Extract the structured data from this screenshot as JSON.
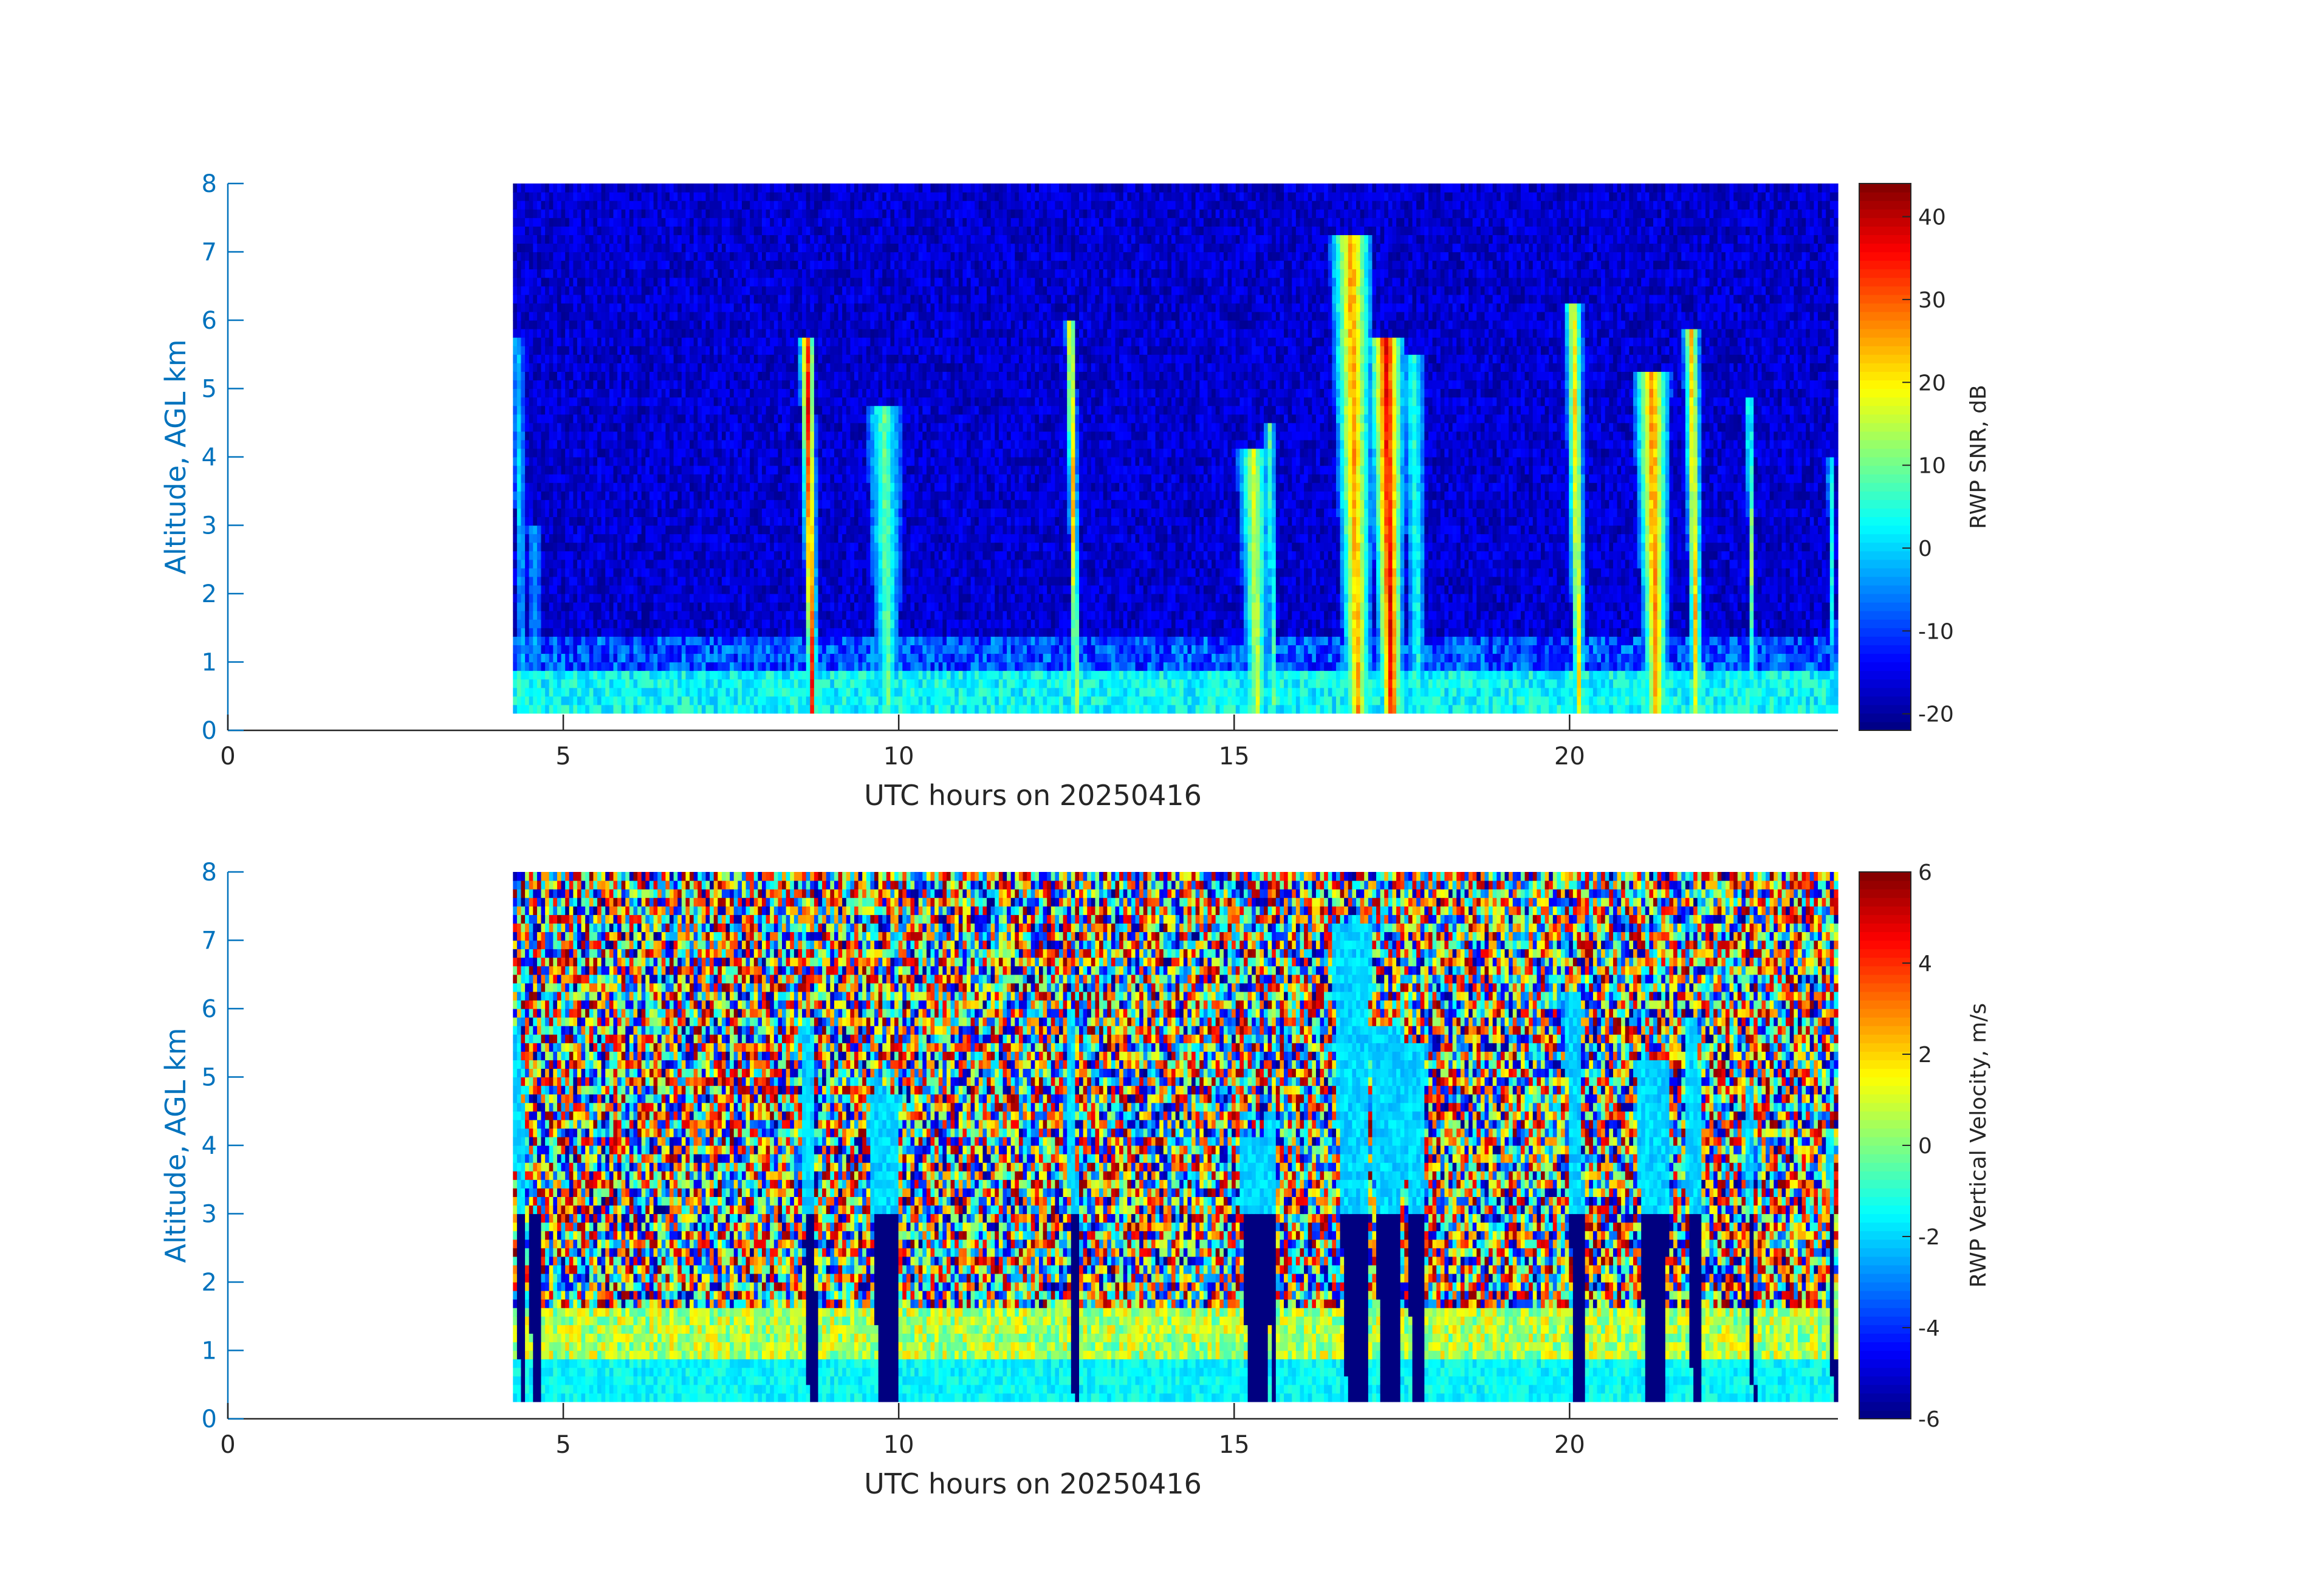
{
  "chart_data": [
    {
      "type": "heatmap",
      "name": "snr-panel",
      "xlabel": "UTC hours on 20250416",
      "ylabel": "Altitude, AGL km",
      "xlim": [
        0,
        24
      ],
      "ylim": [
        0,
        8
      ],
      "x_ticks": [
        0,
        5,
        10,
        15,
        20
      ],
      "y_ticks": [
        0,
        1,
        2,
        3,
        4,
        5,
        6,
        7,
        8
      ],
      "data_x_range": [
        4.25,
        24.0
      ],
      "data_y_range": [
        0.25,
        8.0
      ],
      "colorbar": {
        "label": "RWP SNR, dB",
        "range": [
          -22,
          44
        ],
        "ticks": [
          -20,
          -10,
          0,
          10,
          20,
          30,
          40
        ],
        "colormap": "jet"
      },
      "background_value": -17,
      "surface_layer": {
        "top_km": 0.85,
        "value": 3,
        "enhanced_top_km": 1.35,
        "enhanced_value": -9
      },
      "plumes": [
        {
          "t0": 4.4,
          "top": 5.8,
          "peak": 0,
          "width": 0.09
        },
        {
          "t0": 4.6,
          "top": 3.0,
          "peak": -3,
          "width": 0.1
        },
        {
          "t0": 8.72,
          "top": 5.8,
          "peak": 36,
          "width": 0.13
        },
        {
          "t0": 9.85,
          "top": 4.7,
          "peak": 10,
          "width": 0.28
        },
        {
          "t0": 12.65,
          "top": 6.0,
          "peak": 25,
          "width": 0.09
        },
        {
          "t0": 15.35,
          "top": 4.1,
          "peak": 17,
          "width": 0.26
        },
        {
          "t0": 15.6,
          "top": 4.5,
          "peak": 10,
          "width": 0.08
        },
        {
          "t0": 16.85,
          "top": 7.2,
          "peak": 27,
          "width": 0.34
        },
        {
          "t0": 17.35,
          "top": 5.8,
          "peak": 38,
          "width": 0.3
        },
        {
          "t0": 17.75,
          "top": 5.5,
          "peak": 6,
          "width": 0.18
        },
        {
          "t0": 20.15,
          "top": 6.3,
          "peak": 22,
          "width": 0.15
        },
        {
          "t0": 21.3,
          "top": 5.3,
          "peak": 28,
          "width": 0.3
        },
        {
          "t0": 21.9,
          "top": 5.9,
          "peak": 24,
          "width": 0.14
        },
        {
          "t0": 22.75,
          "top": 4.9,
          "peak": 14,
          "width": 0.06
        },
        {
          "t0": 23.95,
          "top": 4.0,
          "peak": 6,
          "width": 0.06
        }
      ]
    },
    {
      "type": "heatmap",
      "name": "velocity-panel",
      "xlabel": "UTC hours on 20250416",
      "ylabel": "Altitude, AGL km",
      "xlim": [
        0,
        24
      ],
      "ylim": [
        0,
        8
      ],
      "x_ticks": [
        0,
        5,
        10,
        15,
        20
      ],
      "y_ticks": [
        0,
        1,
        2,
        3,
        4,
        5,
        6,
        7,
        8
      ],
      "data_x_range": [
        4.25,
        24.0
      ],
      "data_y_range": [
        0.25,
        8.0
      ],
      "colorbar": {
        "label": "RWP Vertical Velocity, m/s",
        "range": [
          -6,
          6
        ],
        "ticks": [
          -6,
          -4,
          -2,
          0,
          2,
          4,
          6
        ],
        "colormap": "jet"
      },
      "noise_range": [
        -6,
        6
      ],
      "surface_layer": {
        "top_km": 0.9,
        "value": -1.5,
        "upper_top_km": 1.6,
        "upper_value": 0.6
      },
      "fall_streak_value": -6,
      "cloud_value": -2,
      "plumes_ref": "snr-panel"
    }
  ]
}
